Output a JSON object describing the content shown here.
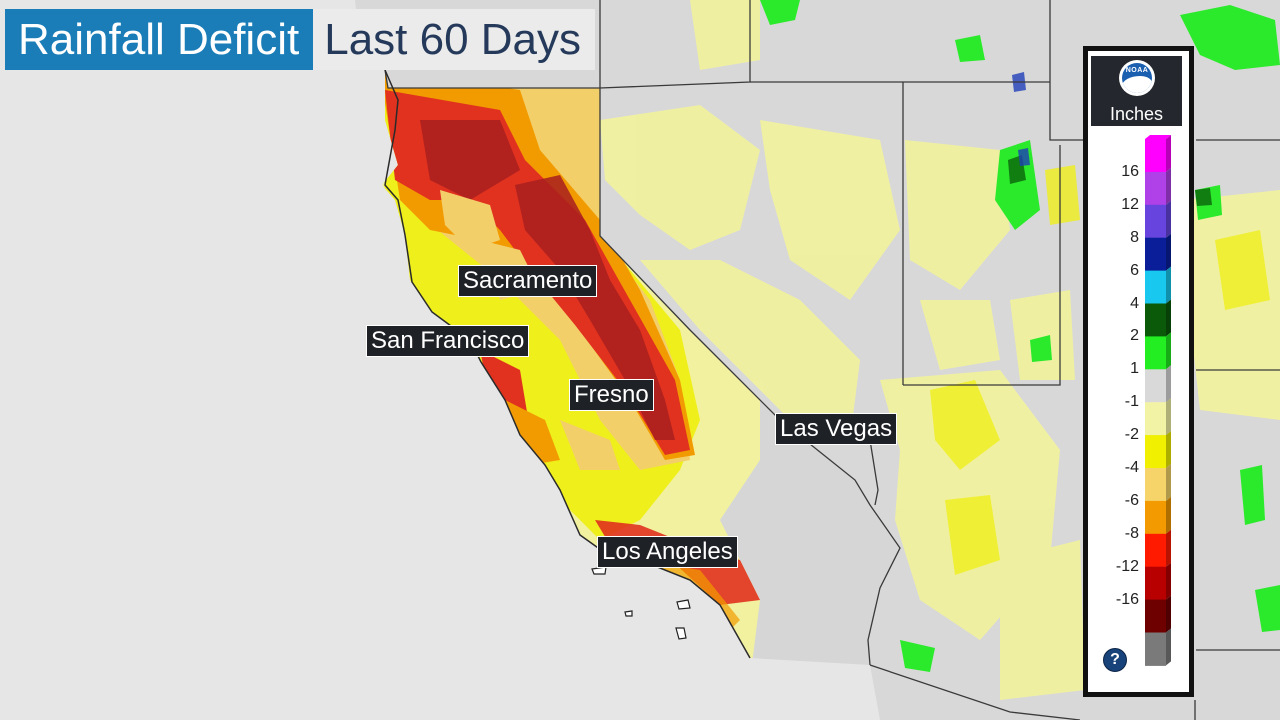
{
  "title": {
    "main": "Rainfall Deficit",
    "sub": "Last 60 Days"
  },
  "cities": [
    {
      "name": "Sacramento"
    },
    {
      "name": "San Francisco"
    },
    {
      "name": "Fresno"
    },
    {
      "name": "Las Vegas"
    },
    {
      "name": "Los Angeles"
    }
  ],
  "legend": {
    "logo": "NOAA",
    "unit": "Inches",
    "help_icon": "question-icon",
    "help_label": "?",
    "ticks": [
      "16",
      "12",
      "8",
      "6",
      "4",
      "2",
      "1",
      "-1",
      "-2",
      "-4",
      "-6",
      "-8",
      "-12",
      "-16"
    ],
    "swatch_colors": [
      "#ff00ff",
      "#b040e8",
      "#6644dd",
      "#0a1e9a",
      "#18c8ee",
      "#0a5a0a",
      "#22ee22",
      "#d9d9d9",
      "#f3f3a6",
      "#f0f000",
      "#f6d46a",
      "#f39a00",
      "#ff1a00",
      "#b80000",
      "#6e0000",
      "#7a7a7a"
    ]
  },
  "colors": {
    "background": "#e6e6e6",
    "no_data": "#d6d6d6",
    "light_yellow": "#f1f1a0",
    "yellow": "#efef1c",
    "tan": "#f3cf6a",
    "orange": "#f29b00",
    "red": "#e0321e",
    "dark_red": "#a81e1e",
    "green": "#2bea2b",
    "boundary": "#3a3a3a"
  }
}
